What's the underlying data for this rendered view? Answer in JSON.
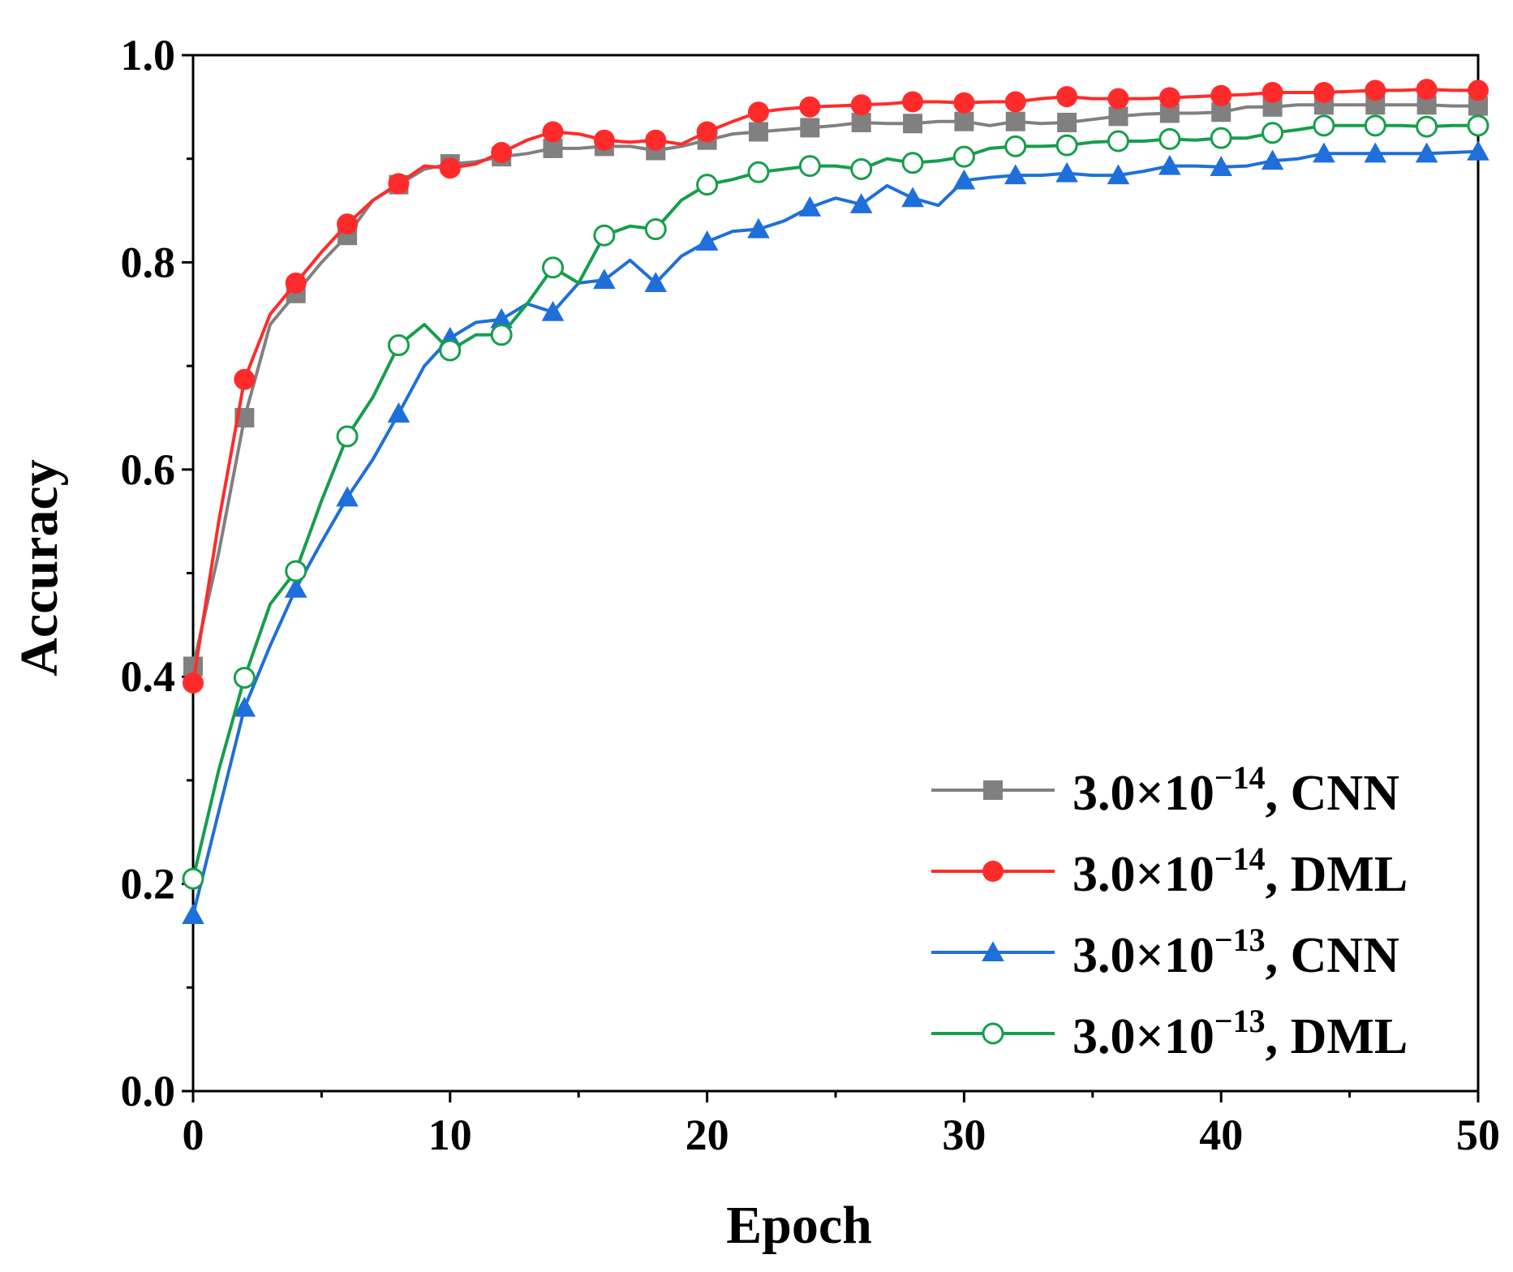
{
  "chart_data": {
    "type": "line",
    "title": "",
    "xlabel": "Epoch",
    "ylabel": "Accuracy",
    "xlim": [
      0,
      50
    ],
    "ylim": [
      0,
      1
    ],
    "xticks": [
      0,
      10,
      20,
      30,
      40,
      50
    ],
    "xtick_labels": [
      "0",
      "10",
      "20",
      "30",
      "40",
      "50"
    ],
    "yticks": [
      0,
      0.2,
      0.4,
      0.6,
      0.8,
      1.0
    ],
    "ytick_labels": [
      "0.0",
      "0.2",
      "0.4",
      "0.6",
      "0.8",
      "1.0"
    ],
    "grid": false,
    "legend_position": "bottom-right",
    "x": [
      0,
      1,
      2,
      3,
      4,
      5,
      6,
      7,
      8,
      9,
      10,
      11,
      12,
      13,
      14,
      15,
      16,
      17,
      18,
      19,
      20,
      21,
      22,
      23,
      24,
      25,
      26,
      27,
      28,
      29,
      30,
      31,
      32,
      33,
      34,
      35,
      36,
      37,
      38,
      39,
      40,
      41,
      42,
      43,
      44,
      45,
      46,
      47,
      48,
      49,
      50
    ],
    "series": [
      {
        "name": "3.0×10−14, CNN",
        "label_base": "3.0×10",
        "label_exp": "−14",
        "label_suffix": ", CNN",
        "color": "#808080",
        "marker": "square",
        "values": [
          0.41,
          0.52,
          0.65,
          0.74,
          0.77,
          0.8,
          0.826,
          0.86,
          0.875,
          0.89,
          0.895,
          0.897,
          0.902,
          0.905,
          0.91,
          0.91,
          0.912,
          0.912,
          0.908,
          0.912,
          0.918,
          0.924,
          0.926,
          0.928,
          0.93,
          0.932,
          0.935,
          0.934,
          0.934,
          0.936,
          0.936,
          0.932,
          0.936,
          0.934,
          0.935,
          0.938,
          0.941,
          0.943,
          0.944,
          0.944,
          0.945,
          0.95,
          0.95,
          0.952,
          0.952,
          0.952,
          0.952,
          0.952,
          0.952,
          0.951,
          0.951
        ]
      },
      {
        "name": "3.0×10−14, DML",
        "label_base": "3.0×10",
        "label_exp": "−14",
        "label_suffix": ", DML",
        "color": "#ff2b2b",
        "marker": "circle-filled",
        "values": [
          0.394,
          0.55,
          0.687,
          0.75,
          0.78,
          0.81,
          0.837,
          0.86,
          0.876,
          0.893,
          0.891,
          0.895,
          0.906,
          0.918,
          0.926,
          0.924,
          0.918,
          0.916,
          0.918,
          0.914,
          0.926,
          0.936,
          0.945,
          0.948,
          0.95,
          0.951,
          0.952,
          0.953,
          0.955,
          0.955,
          0.954,
          0.955,
          0.955,
          0.958,
          0.96,
          0.958,
          0.958,
          0.958,
          0.959,
          0.96,
          0.961,
          0.962,
          0.964,
          0.964,
          0.964,
          0.965,
          0.966,
          0.966,
          0.967,
          0.966,
          0.966
        ]
      },
      {
        "name": "3.0×10−13, CNN",
        "label_base": "3.0×10",
        "label_exp": "−13",
        "label_suffix": ", CNN",
        "color": "#1f6fdb",
        "marker": "triangle",
        "values": [
          0.17,
          0.27,
          0.37,
          0.43,
          0.485,
          0.53,
          0.573,
          0.61,
          0.654,
          0.7,
          0.727,
          0.742,
          0.745,
          0.76,
          0.752,
          0.78,
          0.783,
          0.802,
          0.78,
          0.806,
          0.82,
          0.83,
          0.832,
          0.84,
          0.853,
          0.862,
          0.856,
          0.874,
          0.862,
          0.855,
          0.879,
          0.882,
          0.884,
          0.884,
          0.886,
          0.884,
          0.884,
          0.888,
          0.893,
          0.893,
          0.892,
          0.893,
          0.898,
          0.9,
          0.905,
          0.905,
          0.905,
          0.905,
          0.905,
          0.906,
          0.907
        ]
      },
      {
        "name": "3.0×10−13, DML",
        "label_base": "3.0×10",
        "label_exp": "−13",
        "label_suffix": ", DML",
        "color": "#169e4c",
        "marker": "circle-open",
        "values": [
          0.205,
          0.31,
          0.399,
          0.47,
          0.502,
          0.57,
          0.632,
          0.67,
          0.72,
          0.74,
          0.715,
          0.73,
          0.73,
          0.76,
          0.795,
          0.78,
          0.826,
          0.835,
          0.832,
          0.86,
          0.875,
          0.88,
          0.887,
          0.89,
          0.893,
          0.893,
          0.89,
          0.9,
          0.896,
          0.898,
          0.902,
          0.91,
          0.912,
          0.912,
          0.913,
          0.916,
          0.917,
          0.917,
          0.919,
          0.918,
          0.92,
          0.92,
          0.925,
          0.928,
          0.932,
          0.932,
          0.932,
          0.932,
          0.931,
          0.932,
          0.932
        ]
      }
    ]
  }
}
